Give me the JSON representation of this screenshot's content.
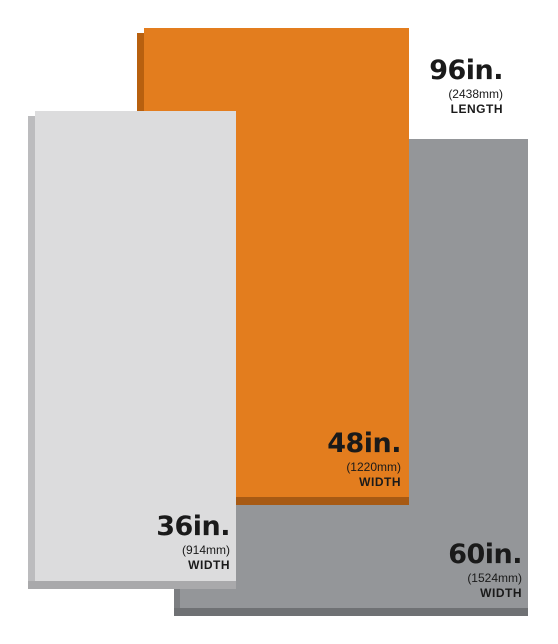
{
  "panels": [
    {
      "id": "light",
      "size": "36in.",
      "metric": "(914mm)",
      "dimension": "WIDTH",
      "color": "#dcdcdd"
    },
    {
      "id": "orange",
      "size": "48in.",
      "metric": "(1220mm)",
      "dimension": "WIDTH",
      "color": "#e37d1e"
    },
    {
      "id": "gray",
      "size": "60in.",
      "metric": "(1524mm)",
      "dimension": "WIDTH",
      "color": "#949699"
    }
  ],
  "length": {
    "size": "96in.",
    "metric": "(2438mm)",
    "dimension": "LENGTH"
  }
}
